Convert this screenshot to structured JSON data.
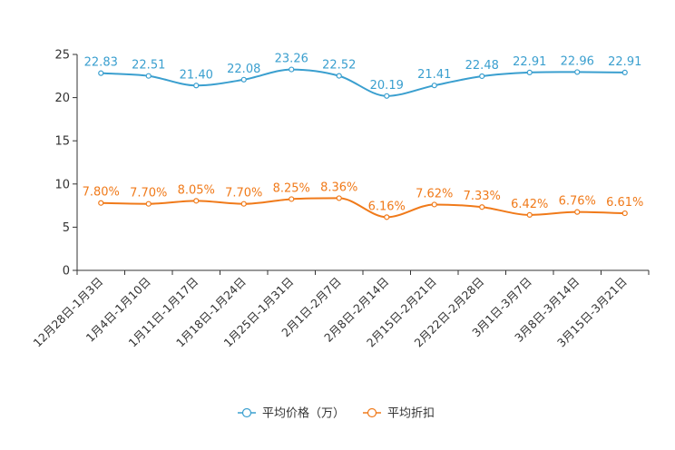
{
  "chart_data": {
    "type": "line",
    "categories": [
      "12月28日-1月3日",
      "1月4日-1月10日",
      "1月11日-1月17日",
      "1月18日-1月24日",
      "1月25日-1月31日",
      "2月1日-2月7日",
      "2月8日-2月14日",
      "2月15日-2月21日",
      "2月22日-2月28日",
      "3月1日-3月7日",
      "3月8日-3月14日",
      "3月15日-3月21日"
    ],
    "ylim": [
      0,
      25
    ],
    "yticks": [
      0,
      5,
      10,
      15,
      20,
      25
    ],
    "series": [
      {
        "name": "平均价格（万）",
        "color": "#3a9fcf",
        "values": [
          22.83,
          22.51,
          21.4,
          22.08,
          23.26,
          22.52,
          20.19,
          21.41,
          22.48,
          22.91,
          22.96,
          22.91
        ],
        "labels": [
          "22.83",
          "22.51",
          "21.40",
          "22.08",
          "23.26",
          "22.52",
          "20.19",
          "21.41",
          "22.48",
          "22.91",
          "22.96",
          "22.91"
        ]
      },
      {
        "name": "平均折扣",
        "color": "#f07a1a",
        "values": [
          7.8,
          7.7,
          8.05,
          7.7,
          8.25,
          8.36,
          6.16,
          7.62,
          7.33,
          6.42,
          6.76,
          6.61
        ],
        "labels": [
          "7.80%",
          "7.70%",
          "8.05%",
          "7.70%",
          "8.25%",
          "8.36%",
          "6.16%",
          "7.62%",
          "7.33%",
          "6.42%",
          "6.76%",
          "6.61%"
        ]
      }
    ],
    "legend_position": "bottom-center",
    "grid": false
  }
}
